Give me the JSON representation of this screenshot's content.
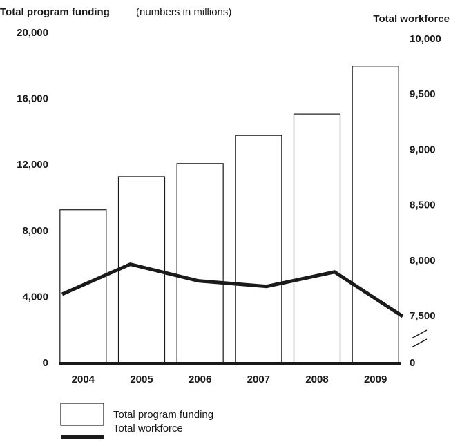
{
  "chart_data": {
    "type": "bar_line",
    "title": "Total program funding",
    "subtitle": "(numbers in millions)",
    "y2label": "Total workforce",
    "categories": [
      "2004",
      "2005",
      "2006",
      "2007",
      "2008",
      "2009"
    ],
    "series": [
      {
        "name": "Total program funding",
        "type": "bar",
        "color": "#ffffff",
        "values": [
          9300,
          11300,
          12100,
          13800,
          15100,
          18000
        ]
      },
      {
        "name": "Total workforce",
        "type": "line",
        "axis": "y2",
        "color": "#1a1a1a",
        "values": [
          7700,
          7970,
          7820,
          7770,
          7900,
          7500
        ]
      }
    ],
    "ylim": [
      0,
      20000
    ],
    "yticks": [
      0,
      {
        "value": 4000,
        "label": "4,000"
      },
      {
        "value": 8000,
        "label": "8,000"
      },
      {
        "value": 12000,
        "label": "12,000"
      },
      {
        "value": 16000,
        "label": "16,000"
      },
      {
        "value": 20000,
        "label": "20,000"
      }
    ],
    "y2lim": [
      7500,
      10000
    ],
    "y2ticks": [
      0,
      {
        "value": 7500,
        "label": "7,500"
      },
      {
        "value": 8000,
        "label": "8,000"
      },
      {
        "value": 8500,
        "label": "8,500"
      },
      {
        "value": 9000,
        "label": "9,000"
      },
      {
        "value": 9500,
        "label": "9,500"
      },
      {
        "value": 10000,
        "label": "10,000"
      }
    ],
    "y2_break": true,
    "grid": false
  }
}
